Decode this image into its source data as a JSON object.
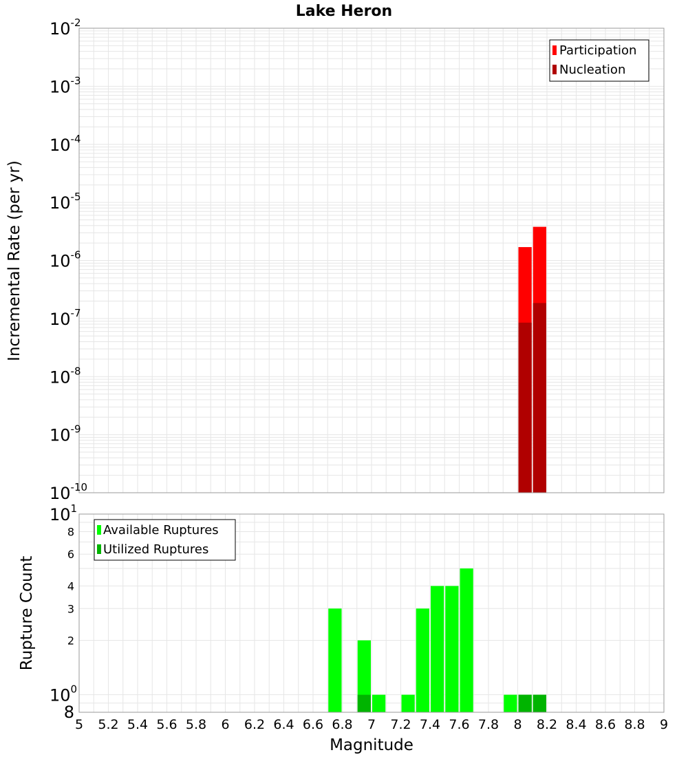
{
  "chart_data": [
    {
      "type": "bar",
      "title": "Lake Heron",
      "xlabel": "",
      "ylabel": "Incremental Rate (per yr)",
      "xlim": [
        5,
        9
      ],
      "ylim": [
        1e-10,
        0.01
      ],
      "y_scale": "log",
      "grid": true,
      "legend_position": "top-right",
      "bin_width": 0.1,
      "y_ticks": [
        {
          "base": "10",
          "exp": "-10"
        },
        {
          "base": "10",
          "exp": "-9"
        },
        {
          "base": "10",
          "exp": "-8"
        },
        {
          "base": "10",
          "exp": "-7"
        },
        {
          "base": "10",
          "exp": "-6"
        },
        {
          "base": "10",
          "exp": "-5"
        },
        {
          "base": "10",
          "exp": "-4"
        },
        {
          "base": "10",
          "exp": "-3"
        },
        {
          "base": "10",
          "exp": "-2"
        }
      ],
      "series": [
        {
          "name": "Participation",
          "color": "#ff0000",
          "x": [
            8.05,
            8.15
          ],
          "values": [
            1.7e-06,
            3.8e-06
          ]
        },
        {
          "name": "Nucleation",
          "color": "#b00000",
          "x": [
            8.05,
            8.15
          ],
          "values": [
            8.5e-08,
            1.85e-07
          ]
        }
      ]
    },
    {
      "type": "bar",
      "title": "",
      "xlabel": "Magnitude",
      "ylabel": "Rupture Count",
      "xlim": [
        5,
        9
      ],
      "ylim": [
        0.8,
        10
      ],
      "y_scale": "log",
      "grid": true,
      "legend_position": "top-left",
      "bin_width": 0.1,
      "x_ticks": [
        "5",
        "5.2",
        "5.4",
        "5.6",
        "5.8",
        "6",
        "6.2",
        "6.4",
        "6.6",
        "6.8",
        "7",
        "7.2",
        "7.4",
        "7.6",
        "7.8",
        "8",
        "8.2",
        "8.4",
        "8.6",
        "8.8",
        "9"
      ],
      "y_decade_ticks": [
        {
          "value": 1,
          "base": "10",
          "exp": "0"
        },
        {
          "value": 10,
          "base": "10",
          "exp": "1"
        }
      ],
      "y_minor_ticks": [
        {
          "value": 0.8,
          "label": "8"
        },
        {
          "value": 2,
          "label": "2"
        },
        {
          "value": 3,
          "label": "3"
        },
        {
          "value": 4,
          "label": "4"
        },
        {
          "value": 6,
          "label": "6"
        },
        {
          "value": 8,
          "label": "8"
        }
      ],
      "series": [
        {
          "name": "Available Ruptures",
          "color": "#00ff00",
          "x": [
            6.75,
            6.95,
            7.05,
            7.25,
            7.35,
            7.45,
            7.55,
            7.65,
            7.95,
            8.05,
            8.15
          ],
          "values": [
            3,
            2,
            1,
            1,
            3,
            4,
            4,
            5,
            1,
            1,
            1
          ]
        },
        {
          "name": "Utilized Ruptures",
          "color": "#00b400",
          "x": [
            6.95,
            8.05,
            8.15
          ],
          "values": [
            1,
            1,
            1
          ]
        }
      ]
    }
  ]
}
